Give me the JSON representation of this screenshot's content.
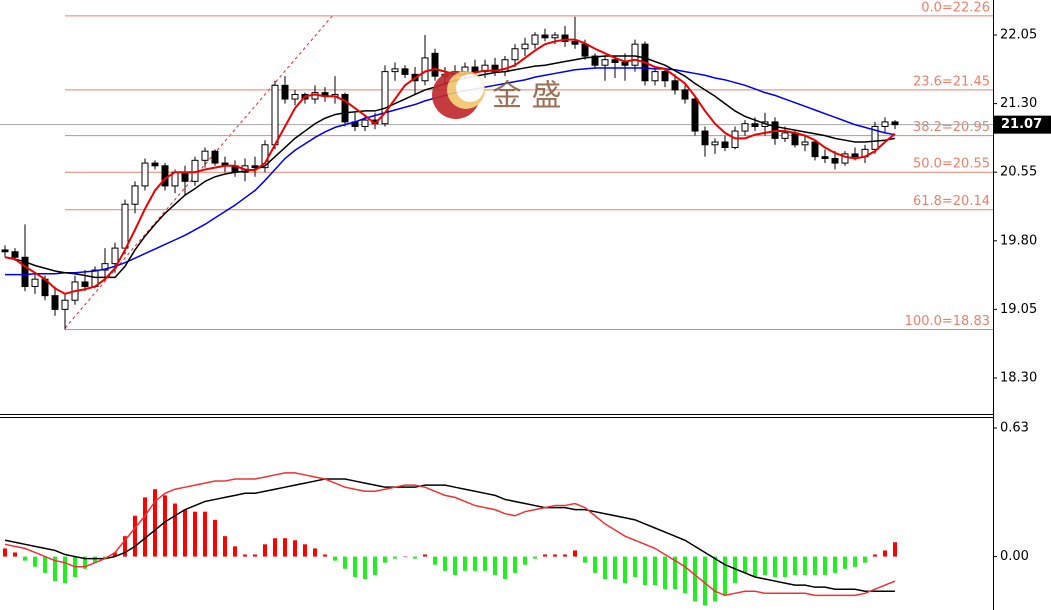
{
  "chart_data": [
    {
      "type": "candlestick",
      "ylim": [
        17.906,
        22.433
      ],
      "yticks": [
        22.05,
        {
          "value": 21.3,
          "label": "21.30"
        },
        20.55,
        {
          "value": 19.8,
          "label": "19.80"
        },
        19.05,
        {
          "value": 18.3,
          "label": "18.30"
        }
      ],
      "up_color": "#ffffff",
      "down_color": "#000000",
      "ohlc": [
        [
          19.7,
          19.75,
          19.62,
          19.68
        ],
        [
          19.68,
          19.72,
          19.58,
          19.62
        ],
        [
          19.62,
          19.98,
          19.25,
          19.3
        ],
        [
          19.3,
          19.45,
          19.22,
          19.38
        ],
        [
          19.38,
          19.42,
          19.15,
          19.2
        ],
        [
          19.2,
          19.3,
          18.98,
          19.05
        ],
        [
          19.05,
          19.22,
          18.83,
          19.15
        ],
        [
          19.15,
          19.42,
          19.1,
          19.35
        ],
        [
          19.35,
          19.48,
          19.25,
          19.3
        ],
        [
          19.3,
          19.52,
          19.28,
          19.48
        ],
        [
          19.48,
          19.72,
          19.4,
          19.55
        ],
        [
          19.55,
          19.78,
          19.45,
          19.72
        ],
        [
          19.72,
          20.25,
          19.65,
          20.2
        ],
        [
          20.2,
          20.45,
          20.1,
          20.4
        ],
        [
          20.4,
          20.7,
          20.35,
          20.65
        ],
        [
          20.65,
          20.68,
          20.58,
          20.62
        ],
        [
          20.62,
          20.65,
          20.35,
          20.4
        ],
        [
          20.4,
          20.58,
          20.32,
          20.55
        ],
        [
          20.55,
          20.62,
          20.3,
          20.45
        ],
        [
          20.45,
          20.72,
          20.4,
          20.68
        ],
        [
          20.68,
          20.82,
          20.6,
          20.78
        ],
        [
          20.78,
          20.8,
          20.62,
          20.65
        ],
        [
          20.65,
          20.72,
          20.55,
          20.62
        ],
        [
          20.62,
          20.68,
          20.5,
          20.55
        ],
        [
          20.55,
          20.7,
          20.45,
          20.62
        ],
        [
          20.62,
          20.72,
          20.5,
          20.6
        ],
        [
          20.6,
          20.9,
          20.55,
          20.85
        ],
        [
          20.85,
          21.55,
          20.8,
          21.5
        ],
        [
          21.5,
          21.6,
          21.3,
          21.35
        ],
        [
          21.35,
          21.45,
          21.28,
          21.4
        ],
        [
          21.4,
          21.42,
          21.3,
          21.35
        ],
        [
          21.35,
          21.5,
          21.3,
          21.42
        ],
        [
          21.42,
          21.48,
          21.32,
          21.38
        ],
        [
          21.38,
          21.6,
          21.3,
          21.4
        ],
        [
          21.4,
          21.42,
          21.05,
          21.1
        ],
        [
          21.1,
          21.2,
          21.0,
          21.05
        ],
        [
          21.05,
          21.18,
          21.0,
          21.12
        ],
        [
          21.12,
          21.2,
          21.02,
          21.08
        ],
        [
          21.08,
          21.72,
          21.05,
          21.65
        ],
        [
          21.65,
          21.75,
          21.55,
          21.68
        ],
        [
          21.68,
          21.72,
          21.58,
          21.62
        ],
        [
          21.62,
          21.7,
          21.4,
          21.55
        ],
        [
          21.55,
          22.05,
          21.5,
          21.8
        ],
        [
          21.85,
          21.9,
          21.55,
          21.6
        ],
        [
          21.6,
          21.7,
          21.5,
          21.62
        ],
        [
          21.62,
          21.72,
          21.55,
          21.65
        ],
        [
          21.65,
          21.75,
          21.58,
          21.7
        ],
        [
          21.7,
          21.78,
          21.6,
          21.65
        ],
        [
          21.65,
          21.78,
          21.58,
          21.72
        ],
        [
          21.72,
          21.8,
          21.6,
          21.65
        ],
        [
          21.65,
          21.82,
          21.6,
          21.78
        ],
        [
          21.78,
          21.95,
          21.7,
          21.9
        ],
        [
          21.9,
          22.02,
          21.82,
          21.95
        ],
        [
          21.95,
          22.08,
          21.9,
          22.05
        ],
        [
          22.05,
          22.12,
          21.98,
          22.02
        ],
        [
          22.02,
          22.08,
          21.95,
          22.05
        ],
        [
          22.05,
          22.15,
          21.92,
          21.98
        ],
        [
          21.98,
          22.25,
          21.9,
          21.95
        ],
        [
          21.95,
          22.0,
          21.78,
          21.82
        ],
        [
          21.82,
          21.85,
          21.68,
          21.72
        ],
        [
          21.72,
          21.82,
          21.55,
          21.78
        ],
        [
          21.78,
          21.82,
          21.58,
          21.75
        ],
        [
          21.75,
          21.85,
          21.55,
          21.72
        ],
        [
          21.72,
          22.0,
          21.65,
          21.95
        ],
        [
          21.95,
          21.98,
          21.5,
          21.55
        ],
        [
          21.55,
          21.7,
          21.5,
          21.65
        ],
        [
          21.65,
          21.68,
          21.48,
          21.55
        ],
        [
          21.55,
          21.62,
          21.4,
          21.45
        ],
        [
          21.45,
          21.5,
          21.3,
          21.35
        ],
        [
          21.35,
          21.38,
          20.95,
          21.0
        ],
        [
          21.0,
          21.05,
          20.72,
          20.85
        ],
        [
          20.85,
          20.92,
          20.75,
          20.88
        ],
        [
          20.88,
          20.95,
          20.78,
          20.82
        ],
        [
          20.82,
          21.05,
          20.8,
          21.0
        ],
        [
          21.0,
          21.12,
          20.95,
          21.08
        ],
        [
          21.08,
          21.15,
          21.0,
          21.05
        ],
        [
          21.05,
          21.2,
          20.95,
          21.1
        ],
        [
          21.1,
          21.15,
          20.85,
          20.92
        ],
        [
          20.92,
          21.05,
          20.88,
          20.98
        ],
        [
          20.98,
          21.0,
          20.82,
          20.85
        ],
        [
          20.85,
          20.95,
          20.78,
          20.88
        ],
        [
          20.88,
          20.9,
          20.68,
          20.72
        ],
        [
          20.72,
          20.8,
          20.65,
          20.7
        ],
        [
          20.7,
          20.78,
          20.58,
          20.65
        ],
        [
          20.65,
          20.78,
          20.62,
          20.75
        ],
        [
          20.75,
          20.82,
          20.68,
          20.72
        ],
        [
          20.72,
          20.85,
          20.65,
          20.8
        ],
        [
          20.8,
          21.1,
          20.75,
          21.05
        ],
        [
          21.05,
          21.15,
          20.98,
          21.1
        ],
        [
          21.1,
          21.12,
          21.02,
          21.07
        ]
      ],
      "lines": [
        {
          "color": "#0000ee",
          "values": [
            19.43,
            19.43,
            19.43,
            19.44,
            19.44,
            19.44,
            19.45,
            19.45,
            19.46,
            19.47,
            19.49,
            19.52,
            19.56,
            19.61,
            19.66,
            19.71,
            19.76,
            19.81,
            19.86,
            19.92,
            19.98,
            20.05,
            20.12,
            20.19,
            20.27,
            20.35,
            20.46,
            20.58,
            20.7,
            20.79,
            20.86,
            20.93,
            20.99,
            21.04,
            21.07,
            21.1,
            21.14,
            21.17,
            21.2,
            21.23,
            21.26,
            21.29,
            21.33,
            21.36,
            21.39,
            21.42,
            21.44,
            21.46,
            21.48,
            21.5,
            21.52,
            21.54,
            21.56,
            21.59,
            21.61,
            21.63,
            21.65,
            21.67,
            21.68,
            21.69,
            21.69,
            21.69,
            21.69,
            21.69,
            21.69,
            21.68,
            21.68,
            21.67,
            21.65,
            21.63,
            21.61,
            21.58,
            21.56,
            21.53,
            21.5,
            21.46,
            21.42,
            21.39,
            21.35,
            21.31,
            21.27,
            21.23,
            21.19,
            21.15,
            21.11,
            21.07,
            21.04,
            21.01,
            20.98,
            20.96
          ]
        },
        {
          "color": "#000000",
          "values": [
            19.62,
            19.6,
            19.57,
            19.53,
            19.5,
            19.47,
            19.45,
            19.44,
            19.42,
            19.4,
            19.4,
            19.4,
            19.52,
            19.7,
            19.85,
            19.98,
            20.1,
            20.2,
            20.3,
            20.37,
            20.45,
            20.5,
            20.53,
            20.55,
            20.56,
            20.58,
            20.62,
            20.72,
            20.82,
            20.92,
            21.0,
            21.08,
            21.14,
            21.18,
            21.2,
            21.21,
            21.22,
            21.22,
            21.25,
            21.3,
            21.35,
            21.4,
            21.45,
            21.48,
            21.52,
            21.55,
            21.58,
            21.6,
            21.62,
            21.64,
            21.65,
            21.67,
            21.69,
            21.71,
            21.72,
            21.74,
            21.76,
            21.78,
            21.8,
            21.81,
            21.82,
            21.82,
            21.82,
            21.82,
            21.8,
            21.76,
            21.72,
            21.66,
            21.6,
            21.52,
            21.45,
            21.38,
            21.3,
            21.22,
            21.16,
            21.12,
            21.08,
            21.05,
            21.03,
            21.01,
            20.99,
            20.97,
            20.95,
            20.92,
            20.9,
            20.88,
            20.88,
            20.89,
            20.9,
            20.92
          ]
        },
        {
          "color": "#ee0000",
          "values": [
            19.62,
            19.6,
            19.52,
            19.45,
            19.38,
            19.28,
            19.22,
            19.25,
            19.27,
            19.3,
            19.38,
            19.5,
            19.7,
            19.92,
            20.15,
            20.35,
            20.48,
            20.55,
            20.55,
            20.55,
            20.58,
            20.6,
            20.62,
            20.62,
            20.58,
            20.57,
            20.65,
            20.85,
            21.05,
            21.25,
            21.38,
            21.4,
            21.38,
            21.38,
            21.33,
            21.25,
            21.17,
            21.08,
            21.2,
            21.35,
            21.5,
            21.58,
            21.65,
            21.68,
            21.65,
            21.62,
            21.62,
            21.64,
            21.66,
            21.66,
            21.68,
            21.72,
            21.8,
            21.88,
            21.95,
            21.98,
            22.0,
            22.0,
            21.96,
            21.9,
            21.85,
            21.8,
            21.76,
            21.78,
            21.75,
            21.7,
            21.68,
            21.6,
            21.52,
            21.38,
            21.22,
            21.08,
            20.98,
            20.92,
            20.92,
            20.96,
            20.98,
            21.0,
            21.0,
            20.98,
            20.95,
            20.9,
            20.82,
            20.76,
            20.72,
            20.7,
            20.72,
            20.78,
            20.88,
            20.97
          ]
        }
      ],
      "fib_color": "#e8826a",
      "fib_levels": [
        {
          "value": 22.26,
          "label": "0.0=22.26"
        },
        {
          "value": 21.45,
          "label": "23.6=21.45"
        },
        {
          "value": 20.95,
          "label": "38.2=20.95"
        },
        {
          "value": 20.55,
          "label": "50.0=20.55"
        },
        {
          "value": 20.14,
          "label": "61.8=20.14"
        },
        {
          "value": 18.83,
          "label": "100.0=18.83"
        }
      ],
      "last_price": 21.07,
      "watermark": "金 盛"
    },
    {
      "type": "macd",
      "ylim": [
        -0.252,
        0.679
      ],
      "yticks": [
        0.63,
        {
          "value": 0,
          "label": "0.00"
        }
      ],
      "pos_color": "#ff0000",
      "neg_color": "#22ee22",
      "histogram": [
        0.04,
        0.02,
        -0.02,
        -0.05,
        -0.08,
        -0.12,
        -0.13,
        -0.1,
        -0.06,
        -0.03,
        -0.01,
        0.02,
        0.1,
        0.2,
        0.29,
        0.33,
        0.3,
        0.26,
        0.23,
        0.22,
        0.22,
        0.18,
        0.1,
        0.05,
        0.01,
        0.01,
        0.06,
        0.09,
        0.09,
        0.08,
        0.06,
        0.04,
        0.01,
        -0.02,
        -0.06,
        -0.1,
        -0.11,
        -0.09,
        -0.03,
        -0.01,
        0.0,
        -0.01,
        0.01,
        -0.04,
        -0.07,
        -0.09,
        -0.07,
        -0.07,
        -0.07,
        -0.09,
        -0.11,
        -0.08,
        -0.04,
        -0.01,
        0.01,
        0.01,
        0.01,
        0.03,
        -0.03,
        -0.08,
        -0.11,
        -0.11,
        -0.13,
        -0.1,
        -0.14,
        -0.14,
        -0.16,
        -0.16,
        -0.18,
        -0.22,
        -0.24,
        -0.22,
        -0.19,
        -0.13,
        -0.08,
        -0.1,
        -0.09,
        -0.1,
        -0.1,
        -0.09,
        -0.09,
        -0.09,
        -0.09,
        -0.08,
        -0.06,
        -0.05,
        -0.03,
        0.01,
        0.03,
        0.07
      ],
      "lines": [
        {
          "color": "#000000",
          "values": [
            0.08,
            0.07,
            0.06,
            0.05,
            0.04,
            0.03,
            0.01,
            0.0,
            -0.01,
            -0.01,
            -0.01,
            0.0,
            0.02,
            0.05,
            0.09,
            0.13,
            0.17,
            0.2,
            0.23,
            0.25,
            0.27,
            0.28,
            0.29,
            0.3,
            0.31,
            0.31,
            0.32,
            0.33,
            0.34,
            0.35,
            0.36,
            0.37,
            0.38,
            0.38,
            0.38,
            0.37,
            0.36,
            0.35,
            0.34,
            0.34,
            0.34,
            0.34,
            0.35,
            0.35,
            0.35,
            0.34,
            0.33,
            0.32,
            0.31,
            0.3,
            0.28,
            0.27,
            0.26,
            0.25,
            0.24,
            0.24,
            0.24,
            0.23,
            0.23,
            0.22,
            0.21,
            0.2,
            0.19,
            0.18,
            0.16,
            0.14,
            0.12,
            0.1,
            0.08,
            0.05,
            0.02,
            -0.01,
            -0.04,
            -0.06,
            -0.08,
            -0.1,
            -0.11,
            -0.12,
            -0.13,
            -0.14,
            -0.14,
            -0.15,
            -0.15,
            -0.16,
            -0.16,
            -0.16,
            -0.17,
            -0.17,
            -0.17,
            -0.17
          ]
        },
        {
          "color": "#ee3333",
          "values": [
            0.06,
            0.05,
            0.04,
            0.02,
            0.0,
            -0.02,
            -0.03,
            -0.05,
            -0.05,
            -0.03,
            -0.01,
            0.02,
            0.08,
            0.14,
            0.2,
            0.27,
            0.31,
            0.33,
            0.34,
            0.35,
            0.36,
            0.37,
            0.37,
            0.38,
            0.38,
            0.38,
            0.39,
            0.4,
            0.41,
            0.41,
            0.4,
            0.39,
            0.38,
            0.36,
            0.34,
            0.33,
            0.32,
            0.32,
            0.33,
            0.34,
            0.35,
            0.35,
            0.34,
            0.32,
            0.3,
            0.29,
            0.27,
            0.25,
            0.24,
            0.23,
            0.21,
            0.2,
            0.22,
            0.23,
            0.24,
            0.25,
            0.25,
            0.26,
            0.24,
            0.2,
            0.16,
            0.13,
            0.1,
            0.08,
            0.06,
            0.04,
            0.01,
            -0.02,
            -0.05,
            -0.09,
            -0.13,
            -0.17,
            -0.19,
            -0.18,
            -0.17,
            -0.17,
            -0.18,
            -0.18,
            -0.18,
            -0.18,
            -0.18,
            -0.19,
            -0.19,
            -0.19,
            -0.19,
            -0.19,
            -0.18,
            -0.16,
            -0.14,
            -0.12
          ]
        }
      ]
    }
  ]
}
